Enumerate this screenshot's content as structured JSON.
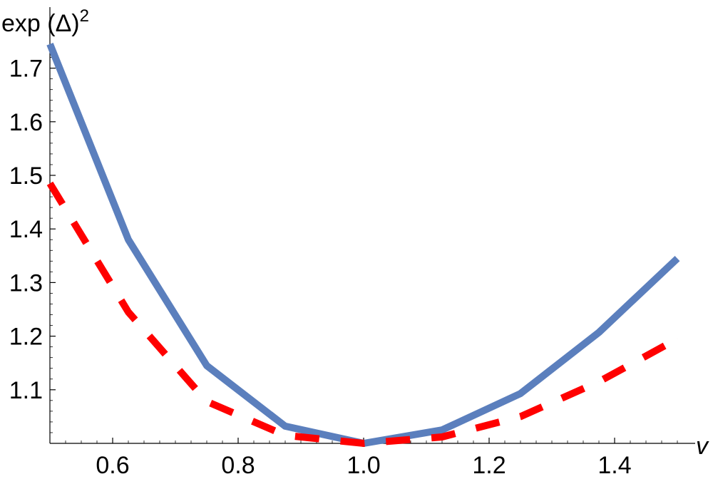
{
  "chart_data": {
    "type": "line",
    "xlabel": "v",
    "ylabel": "exp (Δ)",
    "ylabel_superscript": "2",
    "xlim": [
      0.5,
      1.5
    ],
    "ylim": [
      1.0,
      1.75
    ],
    "x_ticks": [
      0.6,
      0.8,
      1.0,
      1.2,
      1.4
    ],
    "x_tick_labels": [
      "0.6",
      "0.8",
      "1.0",
      "1.2",
      "1.4"
    ],
    "y_ticks": [
      1.1,
      1.2,
      1.3,
      1.4,
      1.5,
      1.6,
      1.7
    ],
    "y_tick_labels": [
      "1.1",
      "1.2",
      "1.3",
      "1.4",
      "1.5",
      "1.6",
      "1.7"
    ],
    "grid": false,
    "series": [
      {
        "color": "#5b7fbd",
        "style": "solid",
        "x": [
          0.5,
          0.625,
          0.75,
          0.875,
          1.0,
          1.125,
          1.25,
          1.375,
          1.5
        ],
        "values": [
          1.745,
          1.38,
          1.145,
          1.032,
          1.0,
          1.025,
          1.093,
          1.207,
          1.345
        ]
      },
      {
        "color": "#ff0000",
        "style": "dashed",
        "x": [
          0.5,
          0.625,
          0.75,
          0.875,
          1.0,
          1.125,
          1.25,
          1.375,
          1.5
        ],
        "values": [
          1.485,
          1.245,
          1.078,
          1.015,
          1.0,
          1.012,
          1.05,
          1.115,
          1.195
        ]
      }
    ]
  }
}
